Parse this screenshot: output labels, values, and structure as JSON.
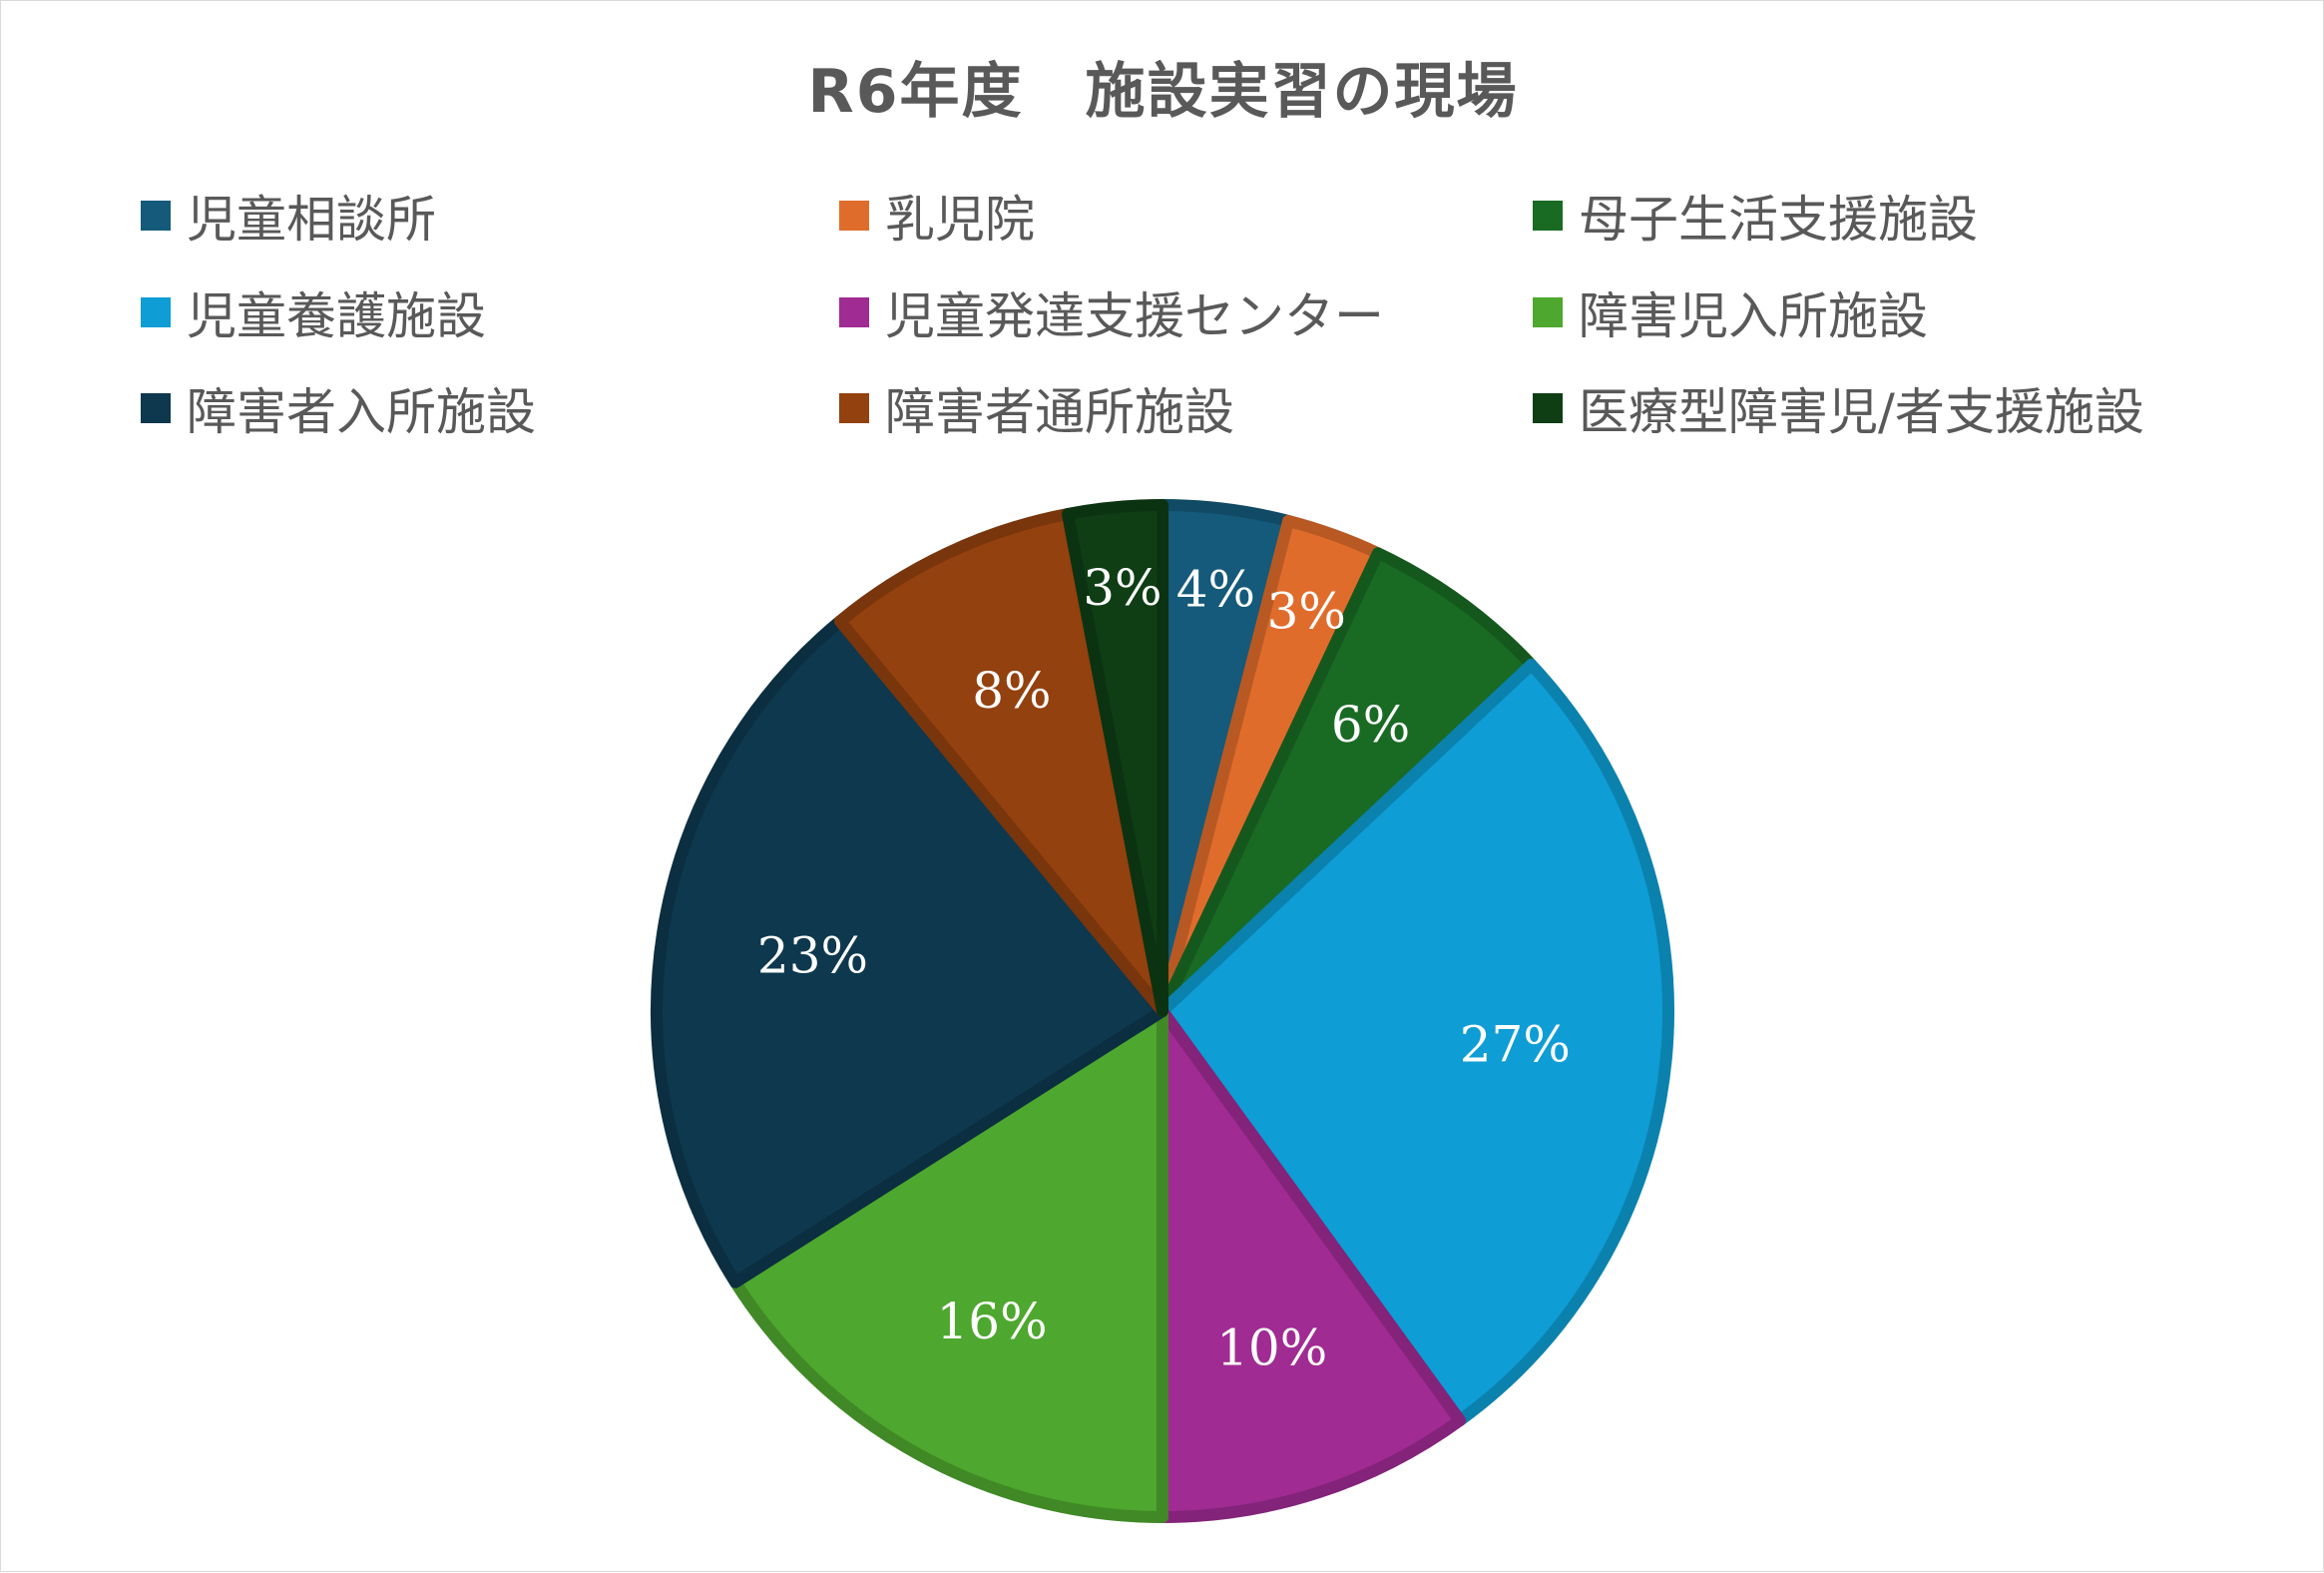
{
  "chart_data": {
    "type": "pie",
    "title": "R6年度　施設実習の現場",
    "legend_position": "top",
    "slices": [
      {
        "name": "児童相談所",
        "value": 4,
        "label": "4%",
        "color": "#155a7a"
      },
      {
        "name": "乳児院",
        "value": 3,
        "label": "3%",
        "color": "#e06c2c"
      },
      {
        "name": "母子生活支援施設",
        "value": 6,
        "label": "6%",
        "color": "#196b24"
      },
      {
        "name": "児童養護施設",
        "value": 27,
        "label": "27%",
        "color": "#0e9dd4"
      },
      {
        "name": "児童発達支援センター",
        "value": 10,
        "label": "10%",
        "color": "#a02b93"
      },
      {
        "name": "障害児入所施設",
        "value": 16,
        "label": "16%",
        "color": "#4ea72e"
      },
      {
        "name": "障害者入所施設",
        "value": 23,
        "label": "23%",
        "color": "#0e384e"
      },
      {
        "name": "障害者通所施設",
        "value": 8,
        "label": "8%",
        "color": "#93410f"
      },
      {
        "name": "医療型障害児/者支援施設",
        "value": 3,
        "label": "3%",
        "color": "#0f3e15"
      }
    ]
  }
}
